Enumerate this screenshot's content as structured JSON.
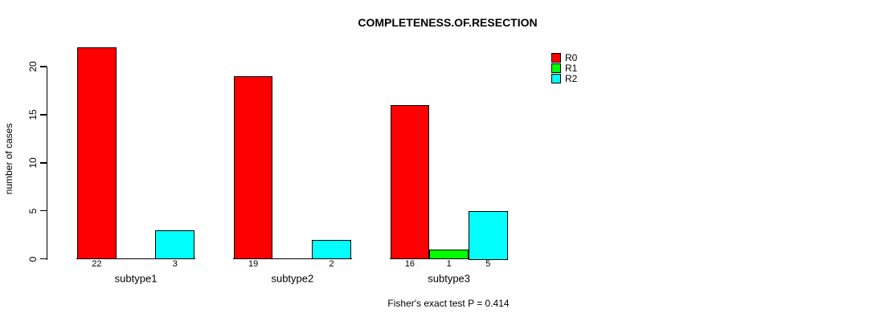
{
  "chart_data": {
    "type": "bar",
    "grouped": true,
    "title": "COMPLETENESS.OF.RESECTION",
    "subtitle": "Fisher's exact test P = 0.414",
    "xlabel": "",
    "ylabel": "number of cases",
    "categories": [
      "subtype1",
      "subtype2",
      "subtype3"
    ],
    "series": [
      {
        "name": "R0",
        "color": "#FF0000",
        "values": [
          22,
          19,
          16
        ]
      },
      {
        "name": "R1",
        "color": "#00FF00",
        "values": [
          0,
          0,
          1
        ]
      },
      {
        "name": "R2",
        "color": "#00FFFF",
        "values": [
          3,
          2,
          5
        ]
      }
    ],
    "bar_value_labels_shown": true,
    "zero_bars_unlabeled": true,
    "yticks": [
      0,
      5,
      10,
      15,
      20
    ],
    "ylim": [
      0,
      20
    ],
    "grid": false,
    "legend_position": "top-right-outside",
    "legend_labels": [
      "R0",
      "R1",
      "R2"
    ],
    "background_color": "#FFFFFF",
    "axis_color": "#000000"
  }
}
